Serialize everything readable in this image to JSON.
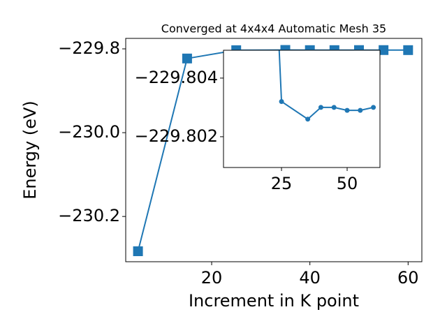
{
  "chart_data": {
    "type": "line",
    "title": "Converged at 4x4x4 Automatic Mesh 35",
    "xlabel": "Increment in K point",
    "ylabel": "Energy (eV)",
    "x": [
      5,
      15,
      25,
      35,
      40,
      45,
      50,
      55,
      60
    ],
    "series": [
      {
        "color": "#1f77b4",
        "marker": "s",
        "values": [
          -230.283,
          -229.823,
          -229.8032,
          -229.8026,
          -229.803,
          -229.803,
          -229.8029,
          -229.8029,
          -229.803
        ]
      }
    ],
    "xlim": [
      2.5,
      62.8
    ],
    "ylim": [
      -230.308,
      -229.775
    ],
    "xticks": [
      20,
      40,
      60
    ],
    "yticks": [
      {
        "value": -230.2,
        "label": "−230.2"
      },
      {
        "value": -230.0,
        "label": "−230.0"
      },
      {
        "value": -229.8,
        "label": "−229.8"
      }
    ],
    "inset": {
      "marker": "o",
      "xlim": [
        2.9,
        62.5
      ],
      "ylim": [
        -229.80095,
        -229.80495
      ],
      "xticks": [
        25,
        50
      ],
      "yticks": [
        {
          "value": -229.802,
          "label": "−229.802"
        },
        {
          "value": -229.804,
          "label": "−229.804"
        }
      ]
    }
  }
}
